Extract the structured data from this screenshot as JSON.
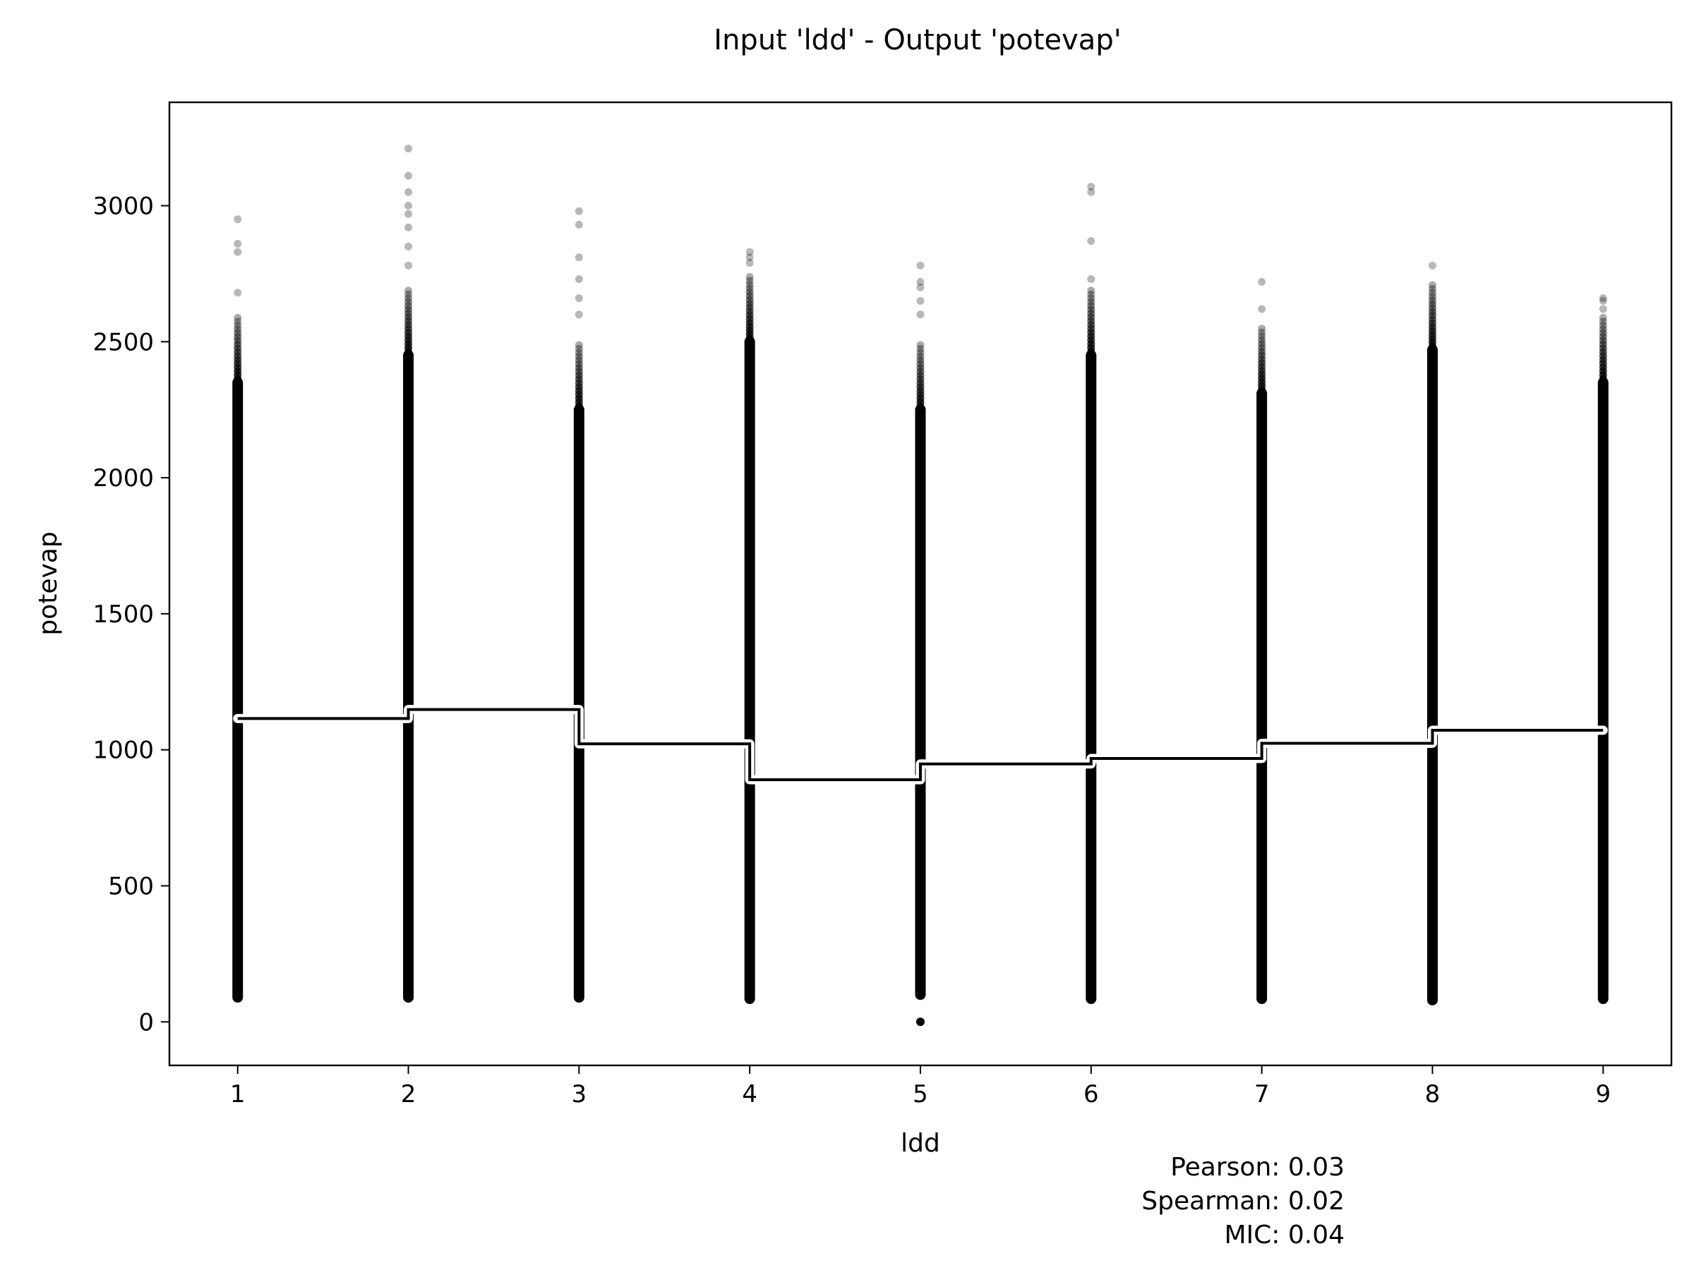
{
  "chart_data": {
    "type": "scatter",
    "title": "Input 'ldd' - Output 'potevap'",
    "xlabel": "ldd",
    "ylabel": "potevap",
    "xlim": [
      0.6,
      9.4
    ],
    "ylim": [
      -160,
      3380
    ],
    "xticks": [
      1,
      2,
      3,
      4,
      5,
      6,
      7,
      8,
      9
    ],
    "yticks": [
      0,
      500,
      1000,
      1500,
      2000,
      2500,
      3000
    ],
    "grid": false,
    "categories": [
      1,
      2,
      3,
      4,
      5,
      6,
      7,
      8,
      9
    ],
    "point_ranges": [
      {
        "x": 1,
        "dense_min": 90,
        "dense_max": 2600,
        "top_outliers": [
          2680,
          2830,
          2860,
          2950
        ]
      },
      {
        "x": 2,
        "dense_min": 90,
        "dense_max": 2700,
        "top_outliers": [
          2780,
          2850,
          2920,
          2970,
          3000,
          3050,
          3110,
          3210
        ]
      },
      {
        "x": 3,
        "dense_min": 90,
        "dense_max": 2500,
        "top_outliers": [
          2600,
          2660,
          2730,
          2810,
          2930,
          2980
        ]
      },
      {
        "x": 4,
        "dense_min": 85,
        "dense_max": 2750,
        "top_outliers": [
          2790,
          2810,
          2830
        ]
      },
      {
        "x": 5,
        "dense_min": 100,
        "dense_max": 2500,
        "top_outliers": [
          2600,
          2650,
          2700,
          2720,
          2780
        ],
        "bottom_outliers": [
          0
        ]
      },
      {
        "x": 6,
        "dense_min": 85,
        "dense_max": 2700,
        "top_outliers": [
          2730,
          2870,
          3050,
          3070
        ]
      },
      {
        "x": 7,
        "dense_min": 85,
        "dense_max": 2560,
        "top_outliers": [
          2620,
          2720
        ]
      },
      {
        "x": 8,
        "dense_min": 80,
        "dense_max": 2720,
        "top_outliers": [
          2780
        ]
      },
      {
        "x": 9,
        "dense_min": 85,
        "dense_max": 2600,
        "top_outliers": [
          2620,
          2650,
          2660
        ]
      }
    ],
    "step_means": [
      {
        "x_start": 1,
        "x_end": 2,
        "value": 1115
      },
      {
        "x_start": 2,
        "x_end": 3,
        "value": 1148
      },
      {
        "x_start": 3,
        "x_end": 4,
        "value": 1022
      },
      {
        "x_start": 4,
        "x_end": 5,
        "value": 890
      },
      {
        "x_start": 5,
        "x_end": 6,
        "value": 948
      },
      {
        "x_start": 6,
        "x_end": 7,
        "value": 968
      },
      {
        "x_start": 7,
        "x_end": 8,
        "value": 1024
      },
      {
        "x_start": 8,
        "x_end": 9,
        "value": 1072
      }
    ],
    "annotations": [
      "Pearson: 0.03",
      "Spearman: 0.02",
      "MIC: 0.04"
    ]
  }
}
